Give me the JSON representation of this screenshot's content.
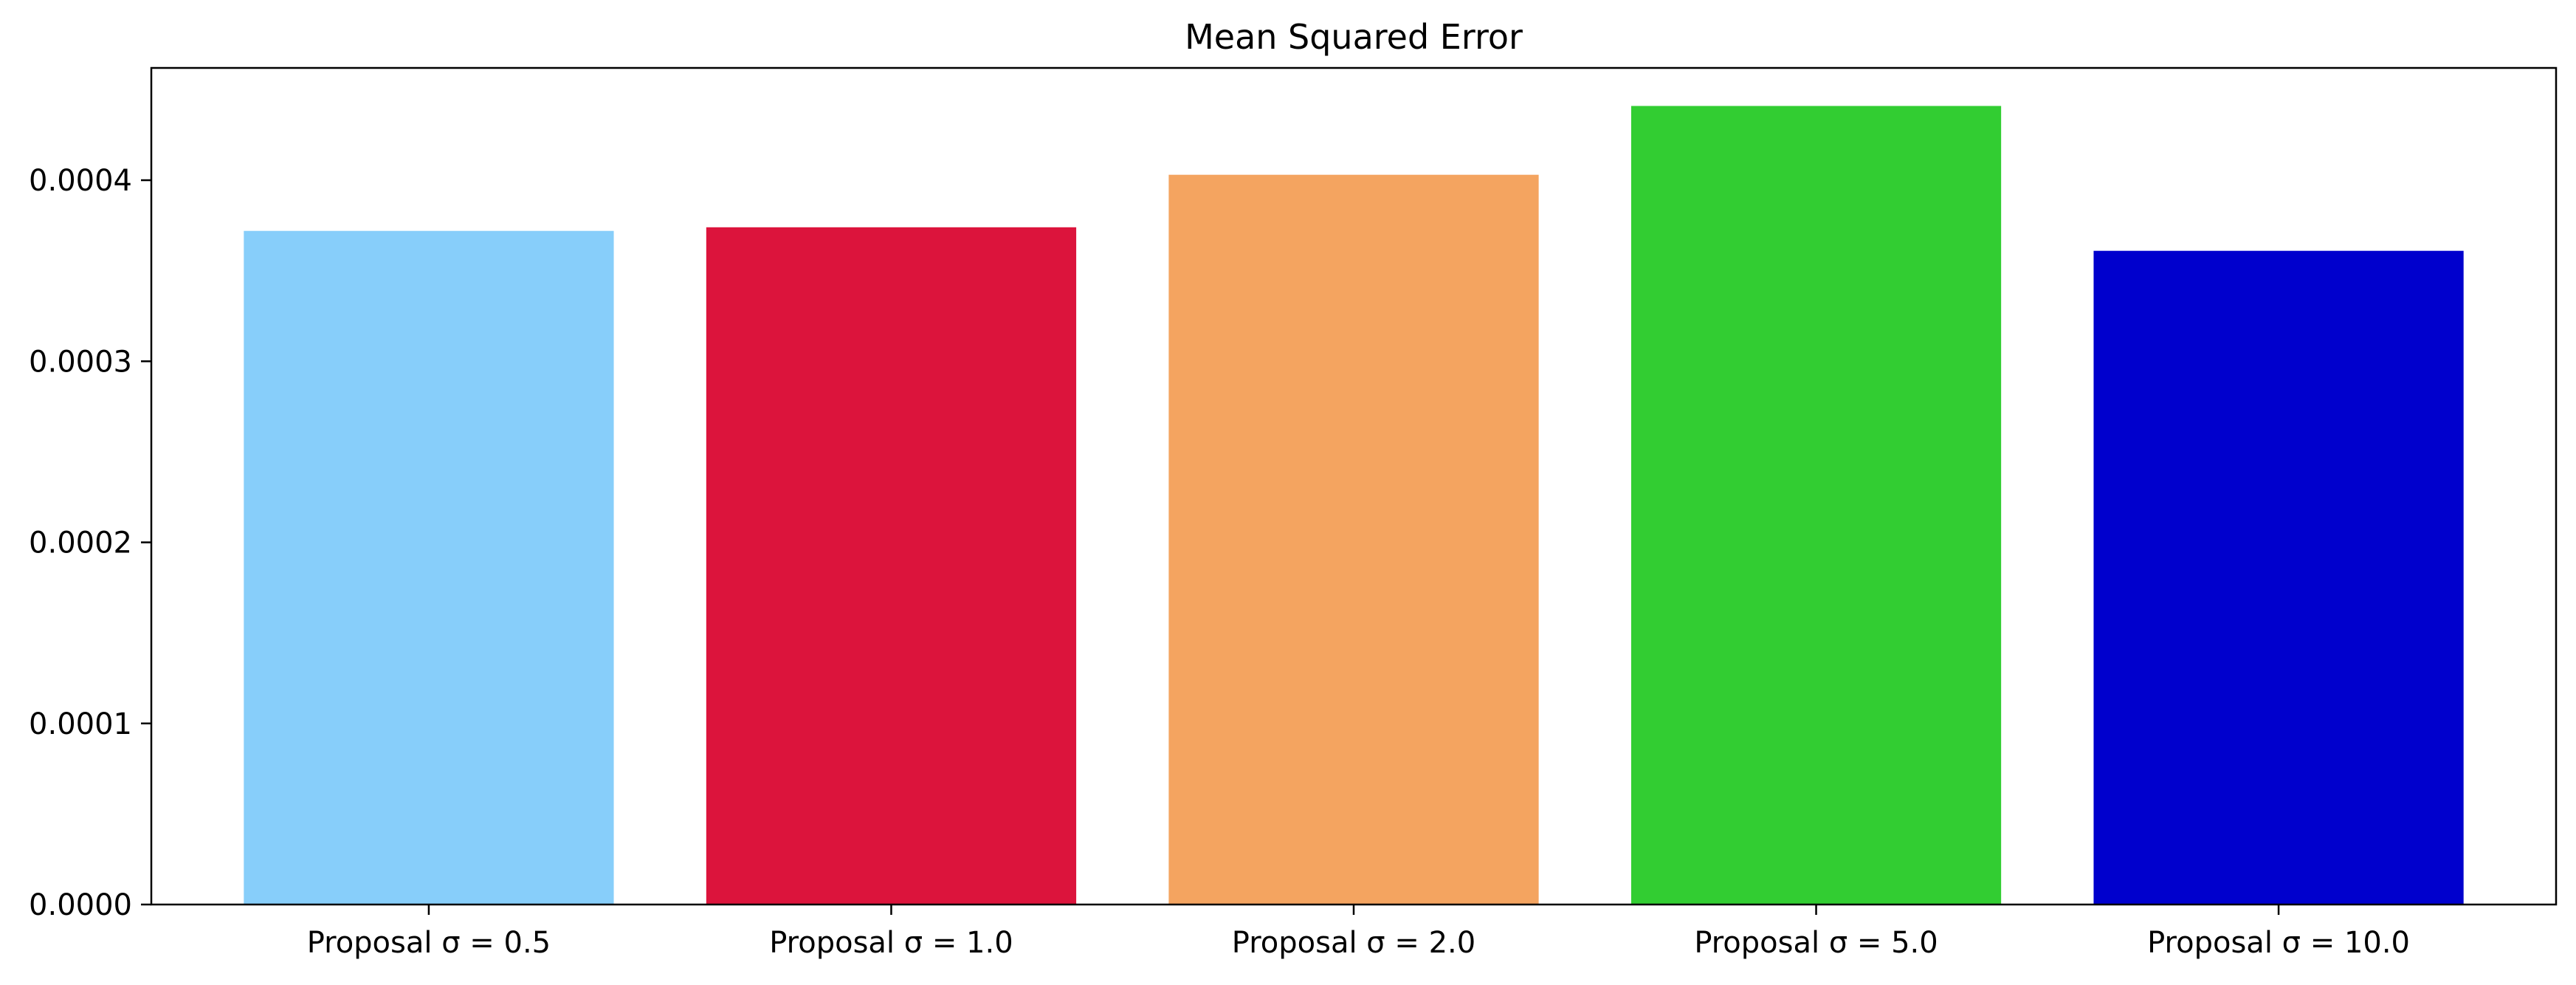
{
  "chart_data": {
    "type": "bar",
    "title": "Mean Squared Error",
    "xlabel": "",
    "ylabel": "",
    "categories": [
      "Proposal σ = 0.5",
      "Proposal σ = 1.0",
      "Proposal σ = 2.0",
      "Proposal σ = 5.0",
      "Proposal σ = 10.0"
    ],
    "values": [
      0.000372,
      0.000374,
      0.000403,
      0.000441,
      0.000361
    ],
    "colors": [
      "#87CEFA",
      "#DC143C",
      "#F4A460",
      "#32CD32",
      "#0000CD"
    ],
    "ylim": [
      0,
      0.000462
    ],
    "yticks": [
      0.0,
      0.0001,
      0.0002,
      0.0003,
      0.0004
    ],
    "ytick_labels": [
      "0.0000",
      "0.0001",
      "0.0002",
      "0.0003",
      "0.0004"
    ],
    "grid": false,
    "legend": false
  }
}
